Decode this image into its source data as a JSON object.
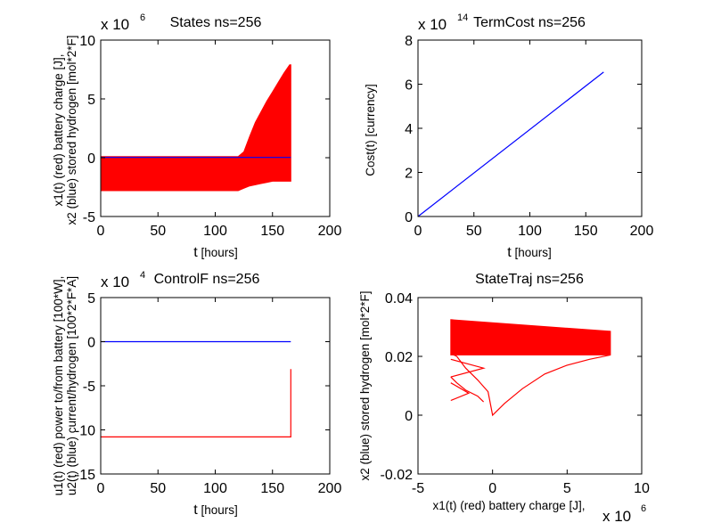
{
  "colors": {
    "red": "#ff0000",
    "blue": "#0000ff",
    "axis": "#000000",
    "background": "#ffffff"
  },
  "chart_data": [
    {
      "type": "line",
      "title": "States ns=256",
      "multiplier": {
        "base": "x 10",
        "exponent": "6"
      },
      "xlabel_main": "t",
      "xlabel_unit": "[hours]",
      "ylabel_lines": [
        "x1(t) (red) battery charge [J],",
        "x2 (blue) stored hydrogen [mol*2*F]"
      ],
      "xlim": [
        0,
        200
      ],
      "ylim": [
        -5,
        10
      ],
      "xticks": [
        "0",
        "50",
        "100",
        "150",
        "200"
      ],
      "yticks": [
        "-5",
        "0",
        "5",
        "10"
      ],
      "grid": false,
      "series": [
        {
          "color": "#ff0000",
          "style": "band",
          "x": [
            0,
            120,
            125,
            130,
            135,
            140,
            145,
            150,
            155,
            160,
            165,
            166
          ],
          "y_low": [
            -2.8,
            -2.8,
            -2.6,
            -2.4,
            -2.3,
            -2.2,
            -2.1,
            -2.0,
            -2.0,
            -2.0,
            -2.0,
            -2.0
          ],
          "y_high": [
            0.1,
            0.1,
            0.5,
            1.8,
            3.0,
            3.9,
            4.8,
            5.6,
            6.4,
            7.2,
            7.9,
            7.9
          ]
        },
        {
          "color": "#0000ff",
          "x": [
            0,
            166
          ],
          "y": [
            0.02,
            0.02
          ]
        }
      ]
    },
    {
      "type": "line",
      "title": "TermCost ns=256",
      "multiplier": {
        "base": "x 10",
        "exponent": "14"
      },
      "xlabel_main": "t",
      "xlabel_unit": "[hours]",
      "ylabel_lines": [
        "Cost(t) [currency]"
      ],
      "xlim": [
        0,
        200
      ],
      "ylim": [
        0,
        8
      ],
      "xticks": [
        "0",
        "50",
        "100",
        "150",
        "200"
      ],
      "yticks": [
        "0",
        "2",
        "4",
        "6",
        "8"
      ],
      "grid": false,
      "series": [
        {
          "color": "#0000ff",
          "x": [
            0,
            166
          ],
          "y": [
            0,
            6.55
          ]
        }
      ]
    },
    {
      "type": "line",
      "title": "ControlF ns=256",
      "multiplier": {
        "base": "x 10",
        "exponent": "4"
      },
      "xlabel_main": "t",
      "xlabel_unit": "[hours]",
      "ylabel_lines": [
        "u1(t) (red) power to/from battery [100*W],",
        "u2(t) (blue) current/hydrogen [100*2*F*A]"
      ],
      "xlim": [
        0,
        200
      ],
      "ylim": [
        -15,
        5
      ],
      "xticks": [
        "0",
        "50",
        "100",
        "150",
        "200"
      ],
      "yticks": [
        "-15",
        "-10",
        "-5",
        "0",
        "5"
      ],
      "grid": false,
      "series": [
        {
          "color": "#ff0000",
          "x": [
            0,
            166,
            166
          ],
          "y": [
            -10.8,
            -10.8,
            -3.1
          ]
        },
        {
          "color": "#0000ff",
          "x": [
            0,
            166
          ],
          "y": [
            0,
            0
          ]
        }
      ]
    },
    {
      "type": "line",
      "title": "StateTraj ns=256",
      "multiplier": {
        "base": "x 10",
        "exponent": "6"
      },
      "xlabel_main": "x1(t) (red) battery charge [J],",
      "xlabel_unit": "",
      "ylabel_lines": [
        "x2 (blue) stored hydrogen [mol*2*F]"
      ],
      "xlim": [
        -5,
        10
      ],
      "ylim": [
        -0.02,
        0.04
      ],
      "xticks": [
        "-5",
        "0",
        "5",
        "10"
      ],
      "yticks": [
        "-0.02",
        "0",
        "0.02",
        "0.04"
      ],
      "grid": false,
      "series": [
        {
          "color": "#ff0000",
          "style": "band",
          "x": [
            -2.8,
            7.9
          ],
          "y_low": [
            0.0205,
            0.0205
          ],
          "y_high": [
            0.0325,
            0.0285
          ]
        },
        {
          "color": "#ff0000",
          "x": [
            -2.8,
            -2.4,
            -1.8,
            -1.0,
            -0.3,
            0.0,
            0.8,
            2.0,
            3.5,
            5.0,
            6.5,
            7.9
          ],
          "y": [
            0.021,
            0.02,
            0.016,
            0.012,
            0.008,
            0.0,
            0.004,
            0.009,
            0.014,
            0.017,
            0.019,
            0.0205
          ]
        },
        {
          "color": "#ff0000",
          "x": [
            -2.8,
            -2.4,
            -1.8,
            -1.0,
            -0.6
          ],
          "y": [
            0.013,
            0.011,
            0.0085,
            0.0065,
            0.0045
          ]
        },
        {
          "color": "#ff0000",
          "x": [
            -2.8,
            -0.6,
            -2.8
          ],
          "y": [
            0.019,
            0.016,
            0.013
          ]
        },
        {
          "color": "#ff0000",
          "x": [
            -2.8,
            -1.6,
            -2.8
          ],
          "y": [
            0.011,
            0.0075,
            0.005
          ]
        }
      ]
    }
  ]
}
